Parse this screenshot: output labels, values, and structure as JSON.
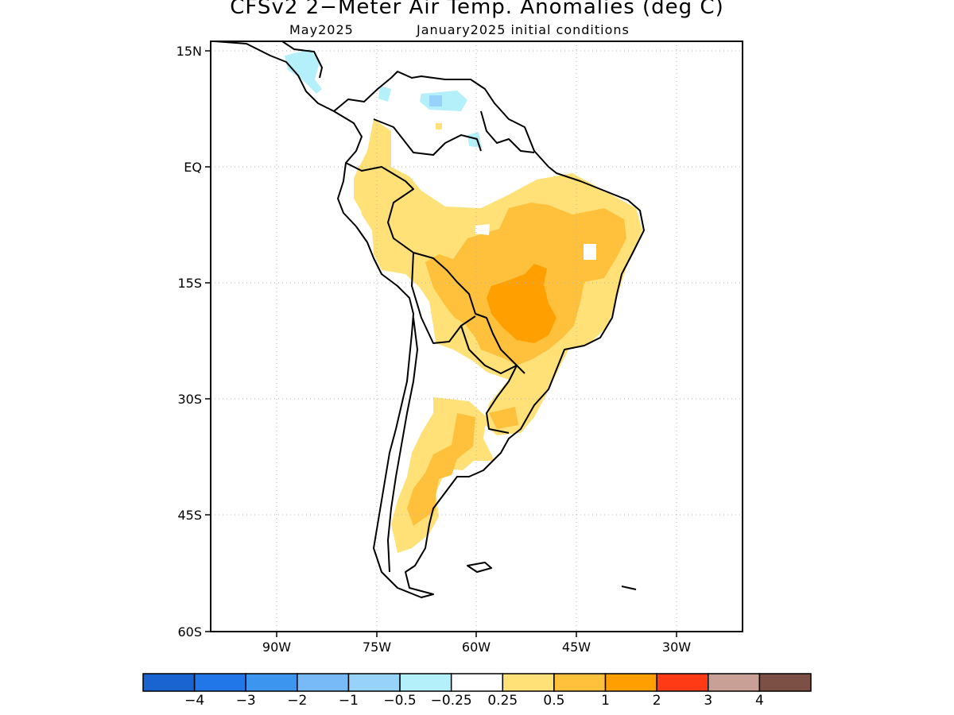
{
  "title": "CFSv2 2−Meter Air Temp. Anomalies (deg C)",
  "subtitle_left": "May2025",
  "subtitle_right": "January2025 initial conditions",
  "lat_labels": [
    "15N",
    "EQ",
    "15S",
    "30S",
    "45S",
    "60S"
  ],
  "lon_labels": [
    "90W",
    "75W",
    "60W",
    "45W",
    "30W"
  ],
  "colorbar": {
    "colors": [
      "#1a64d2",
      "#2176e8",
      "#3c96f0",
      "#78b9f7",
      "#96d2fa",
      "#b4f0fa",
      "#ffffff",
      "#ffe178",
      "#ffc03c",
      "#ffa000",
      "#ff3a14",
      "#c8a096",
      "#7d5046"
    ],
    "labels": [
      "−4",
      "−3",
      "−2",
      "−1",
      "−0.5",
      "−0.25",
      "0.25",
      "0.5",
      "1",
      "2",
      "3",
      "4"
    ]
  }
}
